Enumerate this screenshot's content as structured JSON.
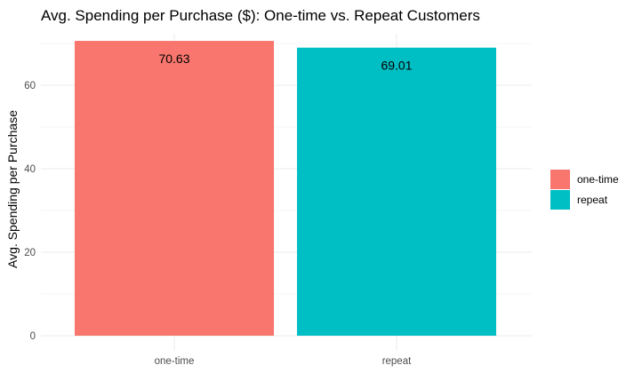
{
  "chart_data": {
    "type": "bar",
    "title": "Avg. Spending per Purchase ($): One-time vs. Repeat Customers",
    "xlabel": "",
    "ylabel": "Avg. Spending per Purchase",
    "categories": [
      "one-time",
      "repeat"
    ],
    "values": [
      70.63,
      69.01
    ],
    "data_labels": [
      "70.63",
      "69.01"
    ],
    "colors": [
      "#F8766D",
      "#00BFC4"
    ],
    "ylim": [
      0,
      71
    ],
    "y_ticks": [
      0,
      20,
      40,
      60
    ],
    "y_tick_labels": [
      "0",
      "20",
      "40",
      "60"
    ],
    "grid": true,
    "legend": {
      "placement": "right",
      "entries": [
        {
          "label": "one-time",
          "color": "#F8766D"
        },
        {
          "label": "repeat",
          "color": "#00BFC4"
        }
      ]
    }
  }
}
